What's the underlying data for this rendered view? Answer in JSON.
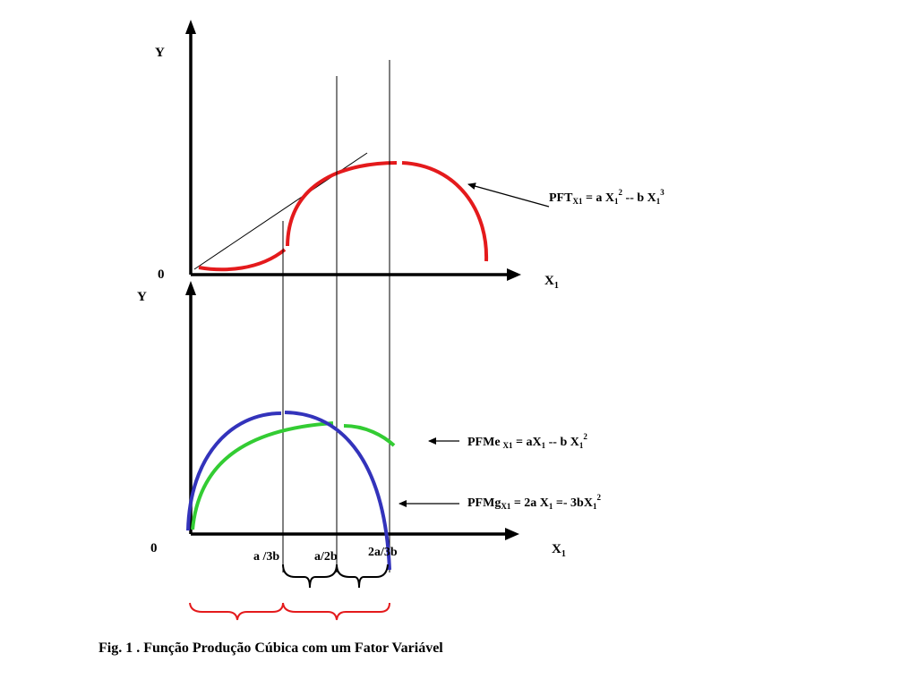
{
  "colors": {
    "total_product": "#e41a1c",
    "average_product": "#33cc33",
    "marginal_product": "#3333bb",
    "axis": "#000000"
  },
  "top_panel": {
    "y_label": "Y",
    "x_label": "X",
    "x_label_sub": "1",
    "origin": "0",
    "pft_main": "PFT",
    "pft_sub": "X1",
    "pft_rest1": " = a X",
    "pft_s1": "1",
    "pft_e1": "2",
    "pft_rest2": " --  b X",
    "pft_s2": "1",
    "pft_e2": "3"
  },
  "bottom_panel": {
    "y_label": "Y",
    "x_label": "X",
    "x_label_sub": "1",
    "origin": "0",
    "tick_1": "a /3b",
    "tick_2": "a/2b",
    "tick_3": "2a/3b",
    "pfme_main": "PFMe",
    "pfme_sub": "X1",
    "pfme_rest1": " = aX",
    "pfme_s1": "1",
    "pfme_rest2": " -- b X",
    "pfme_s2": "1",
    "pfme_e2": "2",
    "pfmg_main": "PFMg",
    "pfmg_sub": "X1",
    "pfmg_rest1": " =  2a X",
    "pfmg_s1": "1",
    "pfmg_rest2": "  =- 3bX",
    "pfmg_s2": "1",
    "pfmg_e2": "2"
  },
  "caption": "Fig. 1 .  Função Produção Cúbica com um Fator Variável"
}
